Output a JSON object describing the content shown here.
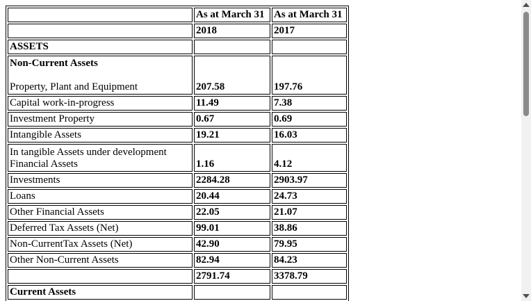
{
  "header": {
    "col2_line1": "As at March 31",
    "col3_line1": "As at March 31",
    "col2_year": "2018",
    "col3_year": "2017"
  },
  "sections": {
    "assets": "ASSETS",
    "non_current": "Non-Current Assets",
    "current_partial": "Current Assets"
  },
  "rows": [
    {
      "label": "Property, Plant and Equipment",
      "v2018": "207.58",
      "v2017": "197.76"
    },
    {
      "label": "Capital work-in-progress",
      "v2018": "11.49",
      "v2017": "7.38"
    },
    {
      "label": "Investment Property",
      "v2018": "0.67",
      "v2017": "0.69"
    },
    {
      "label": "Intangible Assets",
      "v2018": "19.21",
      "v2017": "16.03"
    },
    {
      "label": "In tangible Assets under development",
      "label_line2": "Financial Assets",
      "v2018": "1.16",
      "v2017": "4.12"
    },
    {
      "label": "Investments",
      "v2018": "2284.28",
      "v2017": "2903.97"
    },
    {
      "label": "Loans",
      "v2018": "20.44",
      "v2017": "24.73"
    },
    {
      "label": "Other Financial Assets",
      "v2018": "22.05",
      "v2017": "21.07"
    },
    {
      "label": "Deferred Tax Assets (Net)",
      "v2018": "99.01",
      "v2017": "38.86"
    },
    {
      "label": "Non-CurrentTax Assets (Net)",
      "v2018": "42.90",
      "v2017": "79.95"
    },
    {
      "label": "Other Non-Current Assets",
      "v2018": "82.94",
      "v2017": "84.23"
    }
  ],
  "total": {
    "v2018": "2791.74",
    "v2017": "3378.79"
  }
}
